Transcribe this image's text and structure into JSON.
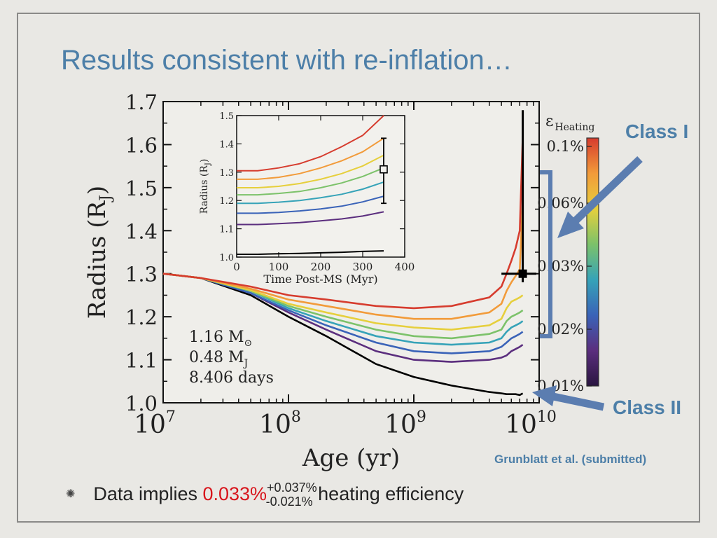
{
  "slide": {
    "title": "Results consistent with re-inflation…",
    "bullet": {
      "prefix": "Data implies ",
      "value": "0.033%",
      "plus": "+0.037%",
      "minus": "-0.021%",
      "suffix": " heating efficiency"
    }
  },
  "annotations": {
    "class1": "Class I",
    "class2": "Class II",
    "credit": "Grunblatt et al. (submitted)",
    "arrow_color": "#5b7db0",
    "label_color": "#4d7fa8"
  },
  "chart_data": {
    "type": "line",
    "xlabel": "Age (yr)",
    "ylabel": "Radius (R",
    "ylabel_sub": "J",
    "ylabel_close": ")",
    "xscale": "log",
    "xlim": [
      10000000,
      10000000000
    ],
    "ylim": [
      1.0,
      1.7
    ],
    "x_ticks": [
      {
        "value": 10000000,
        "base": "10",
        "exp": "7"
      },
      {
        "value": 100000000,
        "base": "10",
        "exp": "8"
      },
      {
        "value": 1000000000,
        "base": "10",
        "exp": "9"
      },
      {
        "value": 10000000000,
        "base": "10",
        "exp": "10"
      }
    ],
    "y_ticks": [
      "1.0",
      "1.1",
      "1.2",
      "1.3",
      "1.4",
      "1.5",
      "1.6",
      "1.7"
    ],
    "system_labels": [
      {
        "main": "1.16 M",
        "sub": "⊙"
      },
      {
        "main": "0.48 M",
        "sub": "J"
      },
      {
        "main": "8.406 days",
        "sub": ""
      }
    ],
    "x": [
      10000000,
      20000000,
      50000000,
      100000000,
      200000000,
      500000000,
      1000000000,
      2000000000,
      4000000000,
      5000000000,
      5500000000,
      6000000000,
      6500000000,
      7000000000,
      7400000000
    ],
    "series": [
      {
        "color": "#000000",
        "values": [
          1.3,
          1.29,
          1.25,
          1.2,
          1.155,
          1.09,
          1.06,
          1.04,
          1.025,
          1.022,
          1.02,
          1.02,
          1.02,
          1.018,
          1.022
        ]
      },
      {
        "color": "#5b2e7e",
        "values": [
          1.3,
          1.29,
          1.255,
          1.21,
          1.17,
          1.12,
          1.1,
          1.095,
          1.1,
          1.105,
          1.11,
          1.12,
          1.125,
          1.13,
          1.135
        ]
      },
      {
        "color": "#3a63b8",
        "values": [
          1.3,
          1.29,
          1.255,
          1.215,
          1.18,
          1.14,
          1.12,
          1.115,
          1.12,
          1.13,
          1.14,
          1.15,
          1.155,
          1.16,
          1.165
        ]
      },
      {
        "color": "#36a3b8",
        "values": [
          1.3,
          1.29,
          1.26,
          1.22,
          1.19,
          1.155,
          1.14,
          1.135,
          1.14,
          1.15,
          1.165,
          1.175,
          1.18,
          1.185,
          1.19
        ]
      },
      {
        "color": "#7cc26a",
        "values": [
          1.3,
          1.29,
          1.26,
          1.225,
          1.2,
          1.17,
          1.155,
          1.15,
          1.16,
          1.17,
          1.19,
          1.2,
          1.205,
          1.21,
          1.215
        ]
      },
      {
        "color": "#e6cf3c",
        "values": [
          1.3,
          1.29,
          1.262,
          1.23,
          1.21,
          1.185,
          1.175,
          1.17,
          1.18,
          1.195,
          1.22,
          1.235,
          1.24,
          1.245,
          1.25
        ]
      },
      {
        "color": "#f29b3a",
        "values": [
          1.3,
          1.29,
          1.265,
          1.24,
          1.225,
          1.205,
          1.195,
          1.195,
          1.21,
          1.23,
          1.26,
          1.28,
          1.295,
          1.31,
          1.47
        ]
      },
      {
        "color": "#d63c2e",
        "values": [
          1.3,
          1.29,
          1.27,
          1.25,
          1.24,
          1.225,
          1.22,
          1.225,
          1.245,
          1.27,
          1.3,
          1.33,
          1.36,
          1.4,
          1.62
        ]
      }
    ],
    "data_point": {
      "x": 7400000000,
      "y": 1.3,
      "y_err": [
        1.28,
        1.68
      ],
      "x_err": [
        5000000000,
        9500000000
      ]
    },
    "colorbar": {
      "label": "ε",
      "label_sub": "Heating",
      "ticks": [
        "0.1%",
        "0.06%",
        "0.03%",
        "0.02%",
        "0.01%"
      ],
      "colors": [
        "#d63c2e",
        "#f29b3a",
        "#e6cf3c",
        "#7cc26a",
        "#36a3b8",
        "#3a63b8",
        "#5b2e7e",
        "#2a1540"
      ]
    },
    "inset": {
      "type": "line",
      "xlabel": "Time Post-MS (Myr)",
      "ylabel": "Radius (R",
      "ylabel_sub": "J",
      "ylabel_close": ")",
      "xlim": [
        0,
        400
      ],
      "ylim": [
        1.0,
        1.5
      ],
      "x_ticks": [
        "0",
        "100",
        "200",
        "300",
        "400"
      ],
      "y_ticks": [
        "1.0",
        "1.1",
        "1.2",
        "1.3",
        "1.4",
        "1.5"
      ],
      "x": [
        0,
        50,
        100,
        150,
        200,
        250,
        300,
        350
      ],
      "series": [
        {
          "color": "#000000",
          "values": [
            1.01,
            1.01,
            1.012,
            1.013,
            1.015,
            1.017,
            1.02,
            1.022
          ]
        },
        {
          "color": "#5b2e7e",
          "values": [
            1.115,
            1.115,
            1.118,
            1.122,
            1.128,
            1.135,
            1.145,
            1.16
          ]
        },
        {
          "color": "#3a63b8",
          "values": [
            1.155,
            1.155,
            1.158,
            1.163,
            1.17,
            1.18,
            1.195,
            1.215
          ]
        },
        {
          "color": "#36a3b8",
          "values": [
            1.19,
            1.19,
            1.194,
            1.2,
            1.21,
            1.222,
            1.24,
            1.265
          ]
        },
        {
          "color": "#7cc26a",
          "values": [
            1.22,
            1.22,
            1.225,
            1.232,
            1.245,
            1.262,
            1.285,
            1.315
          ]
        },
        {
          "color": "#e6cf3c",
          "values": [
            1.245,
            1.245,
            1.25,
            1.26,
            1.275,
            1.295,
            1.322,
            1.36
          ]
        },
        {
          "color": "#f29b3a",
          "values": [
            1.275,
            1.275,
            1.282,
            1.295,
            1.315,
            1.34,
            1.372,
            1.42
          ]
        },
        {
          "color": "#d63c2e",
          "values": [
            1.305,
            1.305,
            1.315,
            1.33,
            1.355,
            1.39,
            1.43,
            1.5
          ]
        }
      ],
      "data_point": {
        "x": 350,
        "y": 1.31,
        "y_err": [
          1.19,
          1.42
        ]
      }
    }
  }
}
